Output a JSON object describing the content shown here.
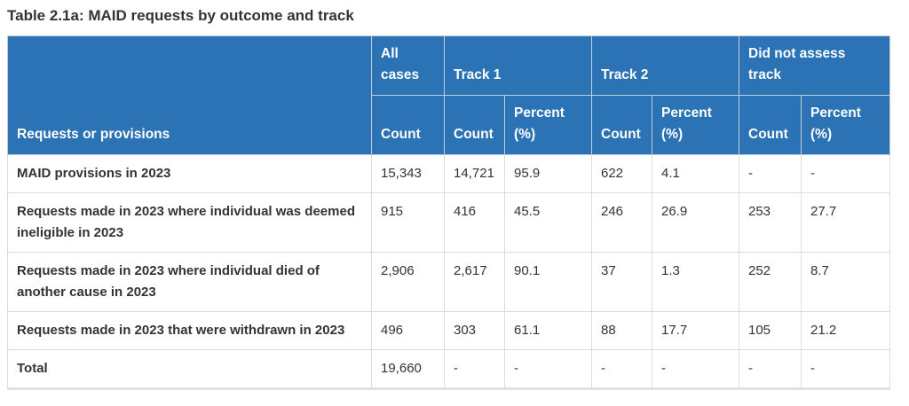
{
  "title": "Table 2.1a: MAID requests by outcome and track",
  "table": {
    "row_header": "Requests or provisions",
    "groups": [
      {
        "label": "All cases",
        "cols": [
          "Count"
        ]
      },
      {
        "label": "Track 1",
        "cols": [
          "Count",
          "Percent (%)"
        ]
      },
      {
        "label": "Track 2",
        "cols": [
          "Count",
          "Percent (%)"
        ]
      },
      {
        "label": "Did not assess track",
        "cols": [
          "Count",
          "Percent (%)"
        ]
      }
    ],
    "rows": [
      {
        "label": "MAID provisions in 2023",
        "values": [
          "15,343",
          "14,721",
          "95.9",
          "622",
          "4.1",
          "-",
          "-"
        ]
      },
      {
        "label": "Requests made in 2023 where individual was deemed ineligible in 2023",
        "values": [
          "915",
          "416",
          "45.5",
          "246",
          "26.9",
          "253",
          "27.7"
        ]
      },
      {
        "label": "Requests made in 2023 where individual died of another cause in 2023",
        "values": [
          "2,906",
          "2,617",
          "90.1",
          "37",
          "1.3",
          "252",
          "8.7"
        ]
      },
      {
        "label": "Requests made in 2023 that were withdrawn in 2023",
        "values": [
          "496",
          "303",
          "61.1",
          "88",
          "17.7",
          "105",
          "21.2"
        ]
      },
      {
        "label": "Total",
        "values": [
          "19,660",
          "-",
          "-",
          "-",
          "-",
          "-",
          "-"
        ]
      }
    ]
  },
  "colors": {
    "header_background": "#2b73b4",
    "header_text": "#ffffff",
    "body_text": "#333333",
    "cell_border": "#dcdcdc",
    "bottom_border": "#e2e2e2"
  }
}
